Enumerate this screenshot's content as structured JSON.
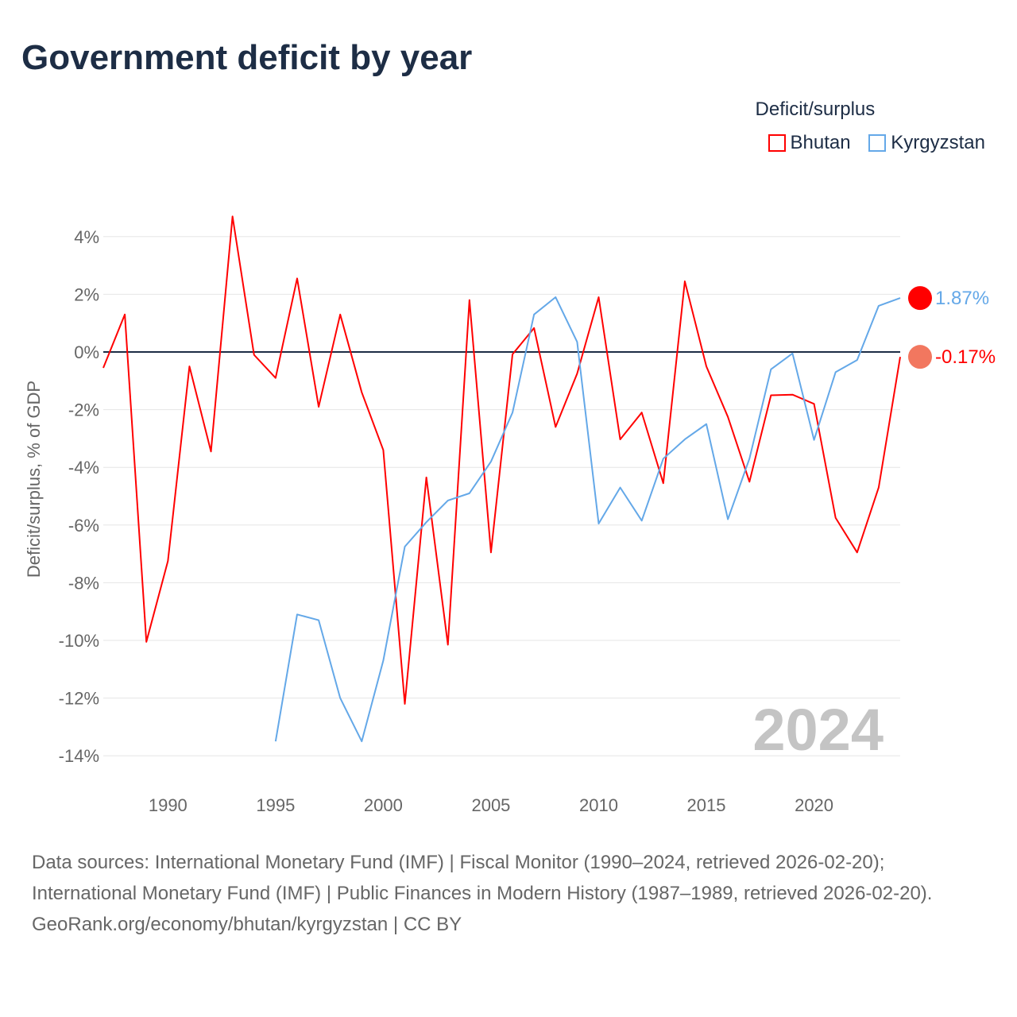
{
  "title": "Government deficit by year",
  "footer": {
    "sources": "Data sources: International Monetary Fund (IMF) | Fiscal Monitor (1990–2024, retrieved 2026-02-20); International Monetary Fund (IMF) | Public Finances in Modern History (1987–1989, retrieved 2026-02-20).",
    "credit": "GeoRank.org/economy/bhutan/kyrgyzstan | CC BY"
  },
  "chart_data": {
    "type": "line",
    "title": "Government deficit by year",
    "xlabel": "",
    "ylabel": "Deficit/surplus, % of GDP",
    "xlim": [
      1987,
      2024
    ],
    "ylim": [
      -14.5,
      4.8
    ],
    "xticks": [
      1990,
      1995,
      2000,
      2005,
      2010,
      2015,
      2020
    ],
    "xtick_labels": [
      "1990",
      "1995",
      "2000",
      "2005",
      "2010",
      "2015",
      "2020"
    ],
    "yticks": [
      4,
      2,
      0,
      -2,
      -4,
      -6,
      -8,
      -10,
      -12,
      -14
    ],
    "ytick_labels": [
      "4%",
      "2%",
      "0%",
      "-2%",
      "-4%",
      "-6%",
      "-8%",
      "-10%",
      "-12%",
      "-14%"
    ],
    "grid": true,
    "legend_title": "Deficit/surplus",
    "legend_position": "top-right",
    "year_watermark": "2024",
    "series": [
      {
        "name": "Bhutan",
        "color": "#ff0000",
        "end_label": "-0.17%",
        "x": [
          1987,
          1988,
          1989,
          1990,
          1991,
          1992,
          1993,
          1994,
          1995,
          1996,
          1997,
          1998,
          1999,
          2000,
          2001,
          2002,
          2003,
          2004,
          2005,
          2006,
          2007,
          2008,
          2009,
          2010,
          2011,
          2012,
          2013,
          2014,
          2015,
          2016,
          2017,
          2018,
          2019,
          2020,
          2021,
          2022,
          2023,
          2024
        ],
        "values": [
          -0.55,
          1.3,
          -10.05,
          -7.25,
          -0.5,
          -3.45,
          4.7,
          -0.1,
          -0.9,
          2.55,
          -1.9,
          1.3,
          -1.4,
          -3.4,
          -12.2,
          -4.35,
          -10.15,
          1.8,
          -6.95,
          -0.08,
          0.83,
          -2.6,
          -0.75,
          1.9,
          -3.03,
          -2.1,
          -4.55,
          2.45,
          -0.5,
          -2.25,
          -4.5,
          -1.5,
          -1.48,
          -1.8,
          -5.75,
          -6.95,
          -4.7,
          -0.17
        ]
      },
      {
        "name": "Kyrgyzstan",
        "color": "#64a8e8",
        "end_label": "1.87%",
        "x": [
          1995,
          1996,
          1997,
          1998,
          1999,
          2000,
          2001,
          2002,
          2003,
          2004,
          2005,
          2006,
          2007,
          2008,
          2009,
          2010,
          2011,
          2012,
          2013,
          2014,
          2015,
          2016,
          2017,
          2018,
          2019,
          2020,
          2021,
          2022,
          2023,
          2024
        ],
        "values": [
          -13.5,
          -9.1,
          -9.3,
          -12,
          -13.5,
          -10.7,
          -6.75,
          -5.9,
          -5.15,
          -4.9,
          -3.8,
          -2.1,
          1.3,
          1.9,
          0.35,
          -5.95,
          -4.7,
          -5.85,
          -3.7,
          -3.03,
          -2.5,
          -5.8,
          -3.7,
          -0.6,
          -0.05,
          -3.05,
          -0.7,
          -0.28,
          1.6,
          1.87
        ]
      }
    ]
  }
}
